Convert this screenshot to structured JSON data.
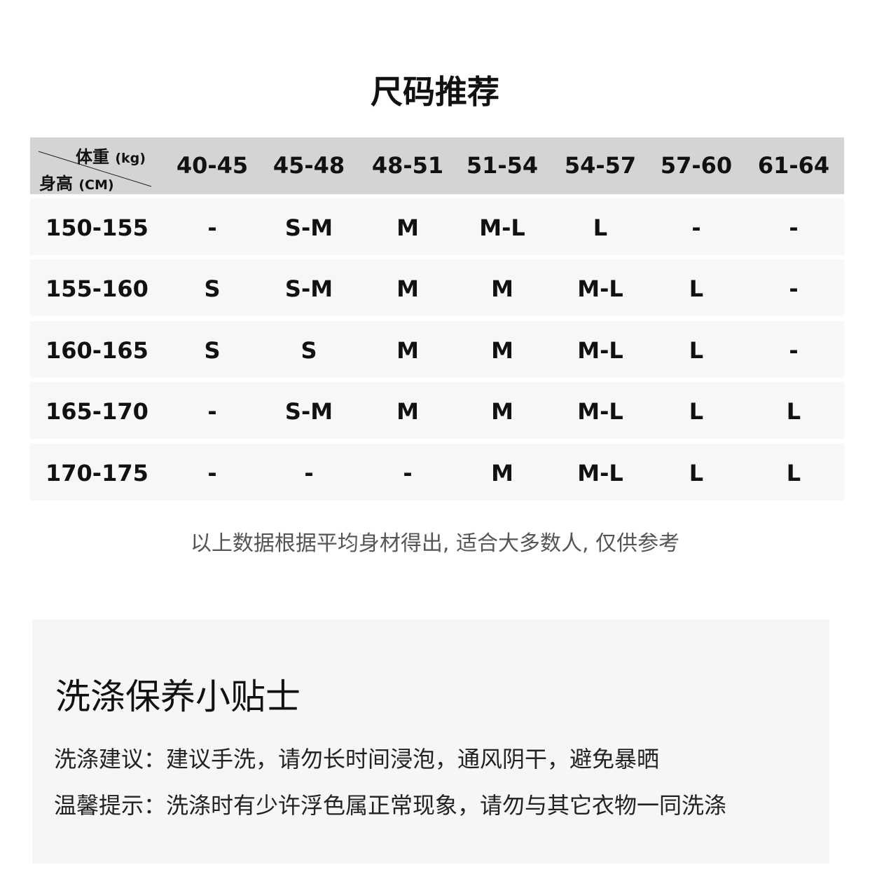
{
  "title": "尺码推荐",
  "table": {
    "weight_label": "体重",
    "weight_unit": "(kg)",
    "height_label": "身高",
    "height_unit": "(CM)",
    "columns": [
      "40-45",
      "45-48",
      "48-51",
      "51-54",
      "54-57",
      "57-60",
      "61-64"
    ],
    "rows": [
      {
        "height": "150-155",
        "sizes": [
          "-",
          "S-M",
          "M",
          "M-L",
          "L",
          "-",
          "-"
        ]
      },
      {
        "height": "155-160",
        "sizes": [
          "S",
          "S-M",
          "M",
          "M",
          "M-L",
          "L",
          "-"
        ]
      },
      {
        "height": "160-165",
        "sizes": [
          "S",
          "S",
          "M",
          "M",
          "M-L",
          "L",
          "-"
        ]
      },
      {
        "height": "165-170",
        "sizes": [
          "-",
          "S-M",
          "M",
          "M",
          "M-L",
          "L",
          "L"
        ]
      },
      {
        "height": "170-175",
        "sizes": [
          "-",
          "-",
          "-",
          "M",
          "M-L",
          "L",
          "L"
        ]
      }
    ]
  },
  "note": "以上数据根据平均身材得出, 适合大多数人, 仅供参考",
  "care": {
    "title": "洗涤保养小贴士",
    "lines": [
      "洗涤建议：建议手洗，请勿长时间浸泡，通风阴干，避免暴晒",
      "温馨提示：洗涤时有少许浮色属正常现象，请勿与其它衣物一同洗涤"
    ]
  }
}
